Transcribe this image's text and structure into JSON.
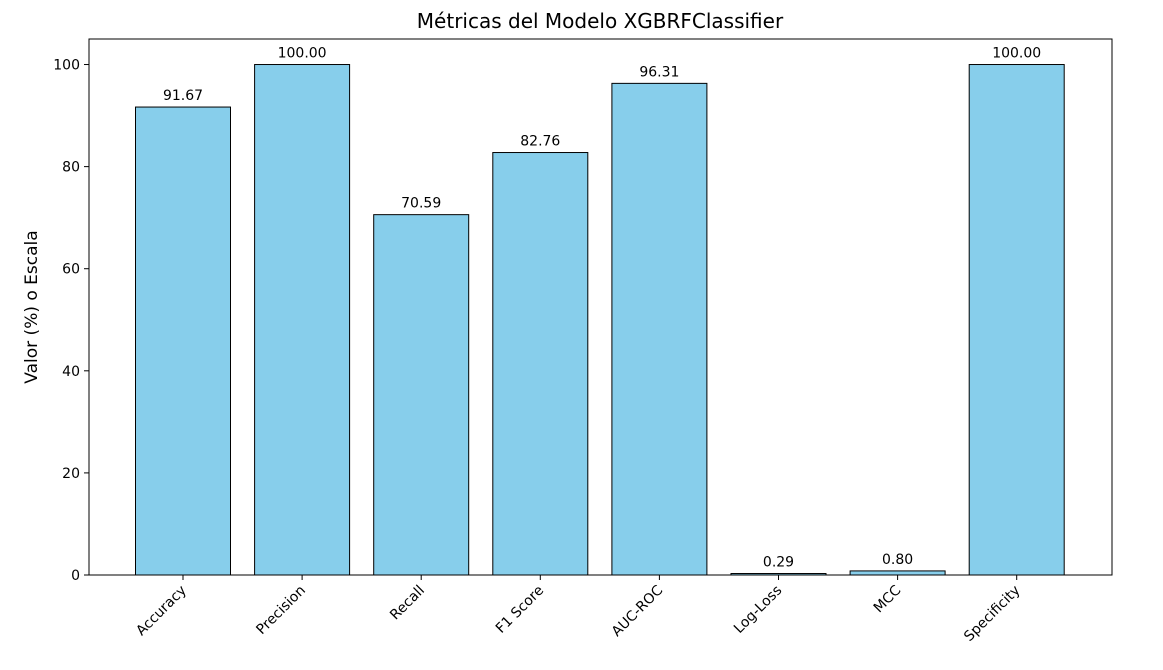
{
  "chart_data": {
    "type": "bar",
    "title": "Métricas del Modelo XGBRFClassifier",
    "xlabel": "",
    "ylabel": "Valor (%) o Escala",
    "categories": [
      "Accuracy",
      "Precision",
      "Recall",
      "F1 Score",
      "AUC-ROC",
      "Log-Loss",
      "MCC",
      "Specificity"
    ],
    "values": [
      91.67,
      100.0,
      70.59,
      82.76,
      96.31,
      0.29,
      0.8,
      100.0
    ],
    "data_labels": [
      "91.67",
      "100.00",
      "70.59",
      "82.76",
      "96.31",
      "0.29",
      "0.80",
      "100.00"
    ],
    "ylim": [
      0,
      105
    ],
    "yticks": [
      0,
      20,
      40,
      60,
      80,
      100
    ],
    "grid": false,
    "legend": "none",
    "bar_color": "#87CEEB",
    "bar_edge_color": "#000000"
  }
}
